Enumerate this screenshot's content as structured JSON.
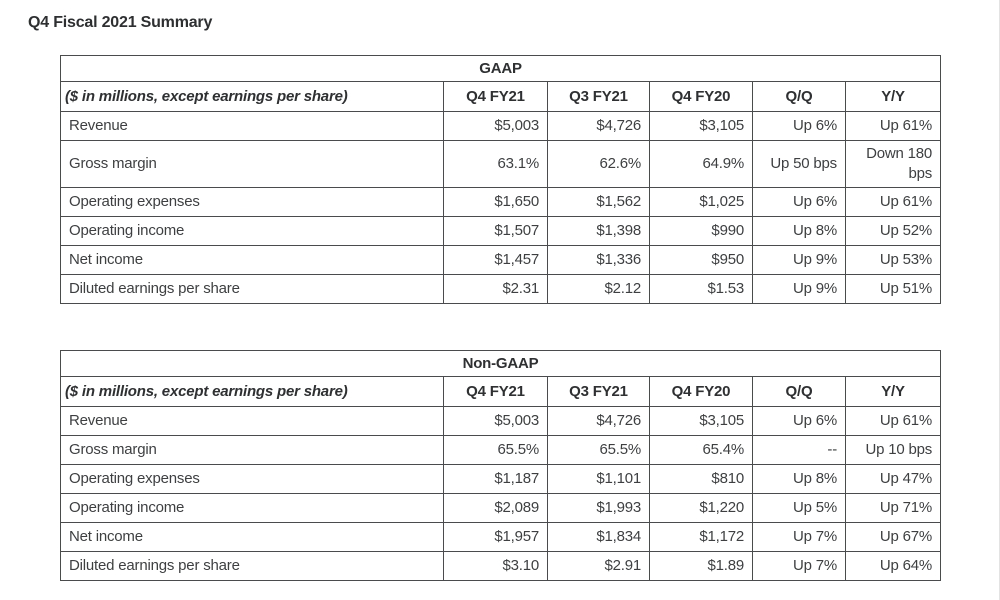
{
  "page": {
    "title": "Q4 Fiscal 2021 Summary"
  },
  "columns": {
    "label": "($ in millions, except earnings per share)",
    "c1": "Q4 FY21",
    "c2": "Q3 FY21",
    "c3": "Q4 FY20",
    "c4": "Q/Q",
    "c5": "Y/Y"
  },
  "tables": [
    {
      "title": "GAAP",
      "rows": [
        [
          "Revenue",
          "$5,003",
          "$4,726",
          "$3,105",
          "Up 6%",
          "Up 61%"
        ],
        [
          "Gross margin",
          "63.1%",
          "62.6%",
          "64.9%",
          "Up 50 bps",
          "Down 180 bps"
        ],
        [
          "Operating expenses",
          "$1,650",
          "$1,562",
          "$1,025",
          "Up 6%",
          "Up 61%"
        ],
        [
          "Operating income",
          "$1,507",
          "$1,398",
          "$990",
          "Up 8%",
          "Up 52%"
        ],
        [
          "Net income",
          "$1,457",
          "$1,336",
          "$950",
          "Up 9%",
          "Up 53%"
        ],
        [
          "Diluted earnings per share",
          "$2.31",
          "$2.12",
          "$1.53",
          "Up 9%",
          "Up 51%"
        ]
      ]
    },
    {
      "title": "Non-GAAP",
      "rows": [
        [
          "Revenue",
          "$5,003",
          "$4,726",
          "$3,105",
          "Up 6%",
          "Up 61%"
        ],
        [
          "Gross margin",
          "65.5%",
          "65.5%",
          "65.4%",
          "--",
          "Up 10 bps"
        ],
        [
          "Operating expenses",
          "$1,187",
          "$1,101",
          "$810",
          "Up 8%",
          "Up 47%"
        ],
        [
          "Operating income",
          "$2,089",
          "$1,993",
          "$1,220",
          "Up 5%",
          "Up 71%"
        ],
        [
          "Net income",
          "$1,957",
          "$1,834",
          "$1,172",
          "Up 7%",
          "Up 67%"
        ],
        [
          "Diluted earnings per share",
          "$3.10",
          "$2.91",
          "$1.89",
          "Up 7%",
          "Up 64%"
        ]
      ]
    }
  ],
  "colors": {
    "text": "#3d3f41",
    "heading_text": "#2e3032",
    "border": "#4a4b4c",
    "background": "#ffffff"
  }
}
